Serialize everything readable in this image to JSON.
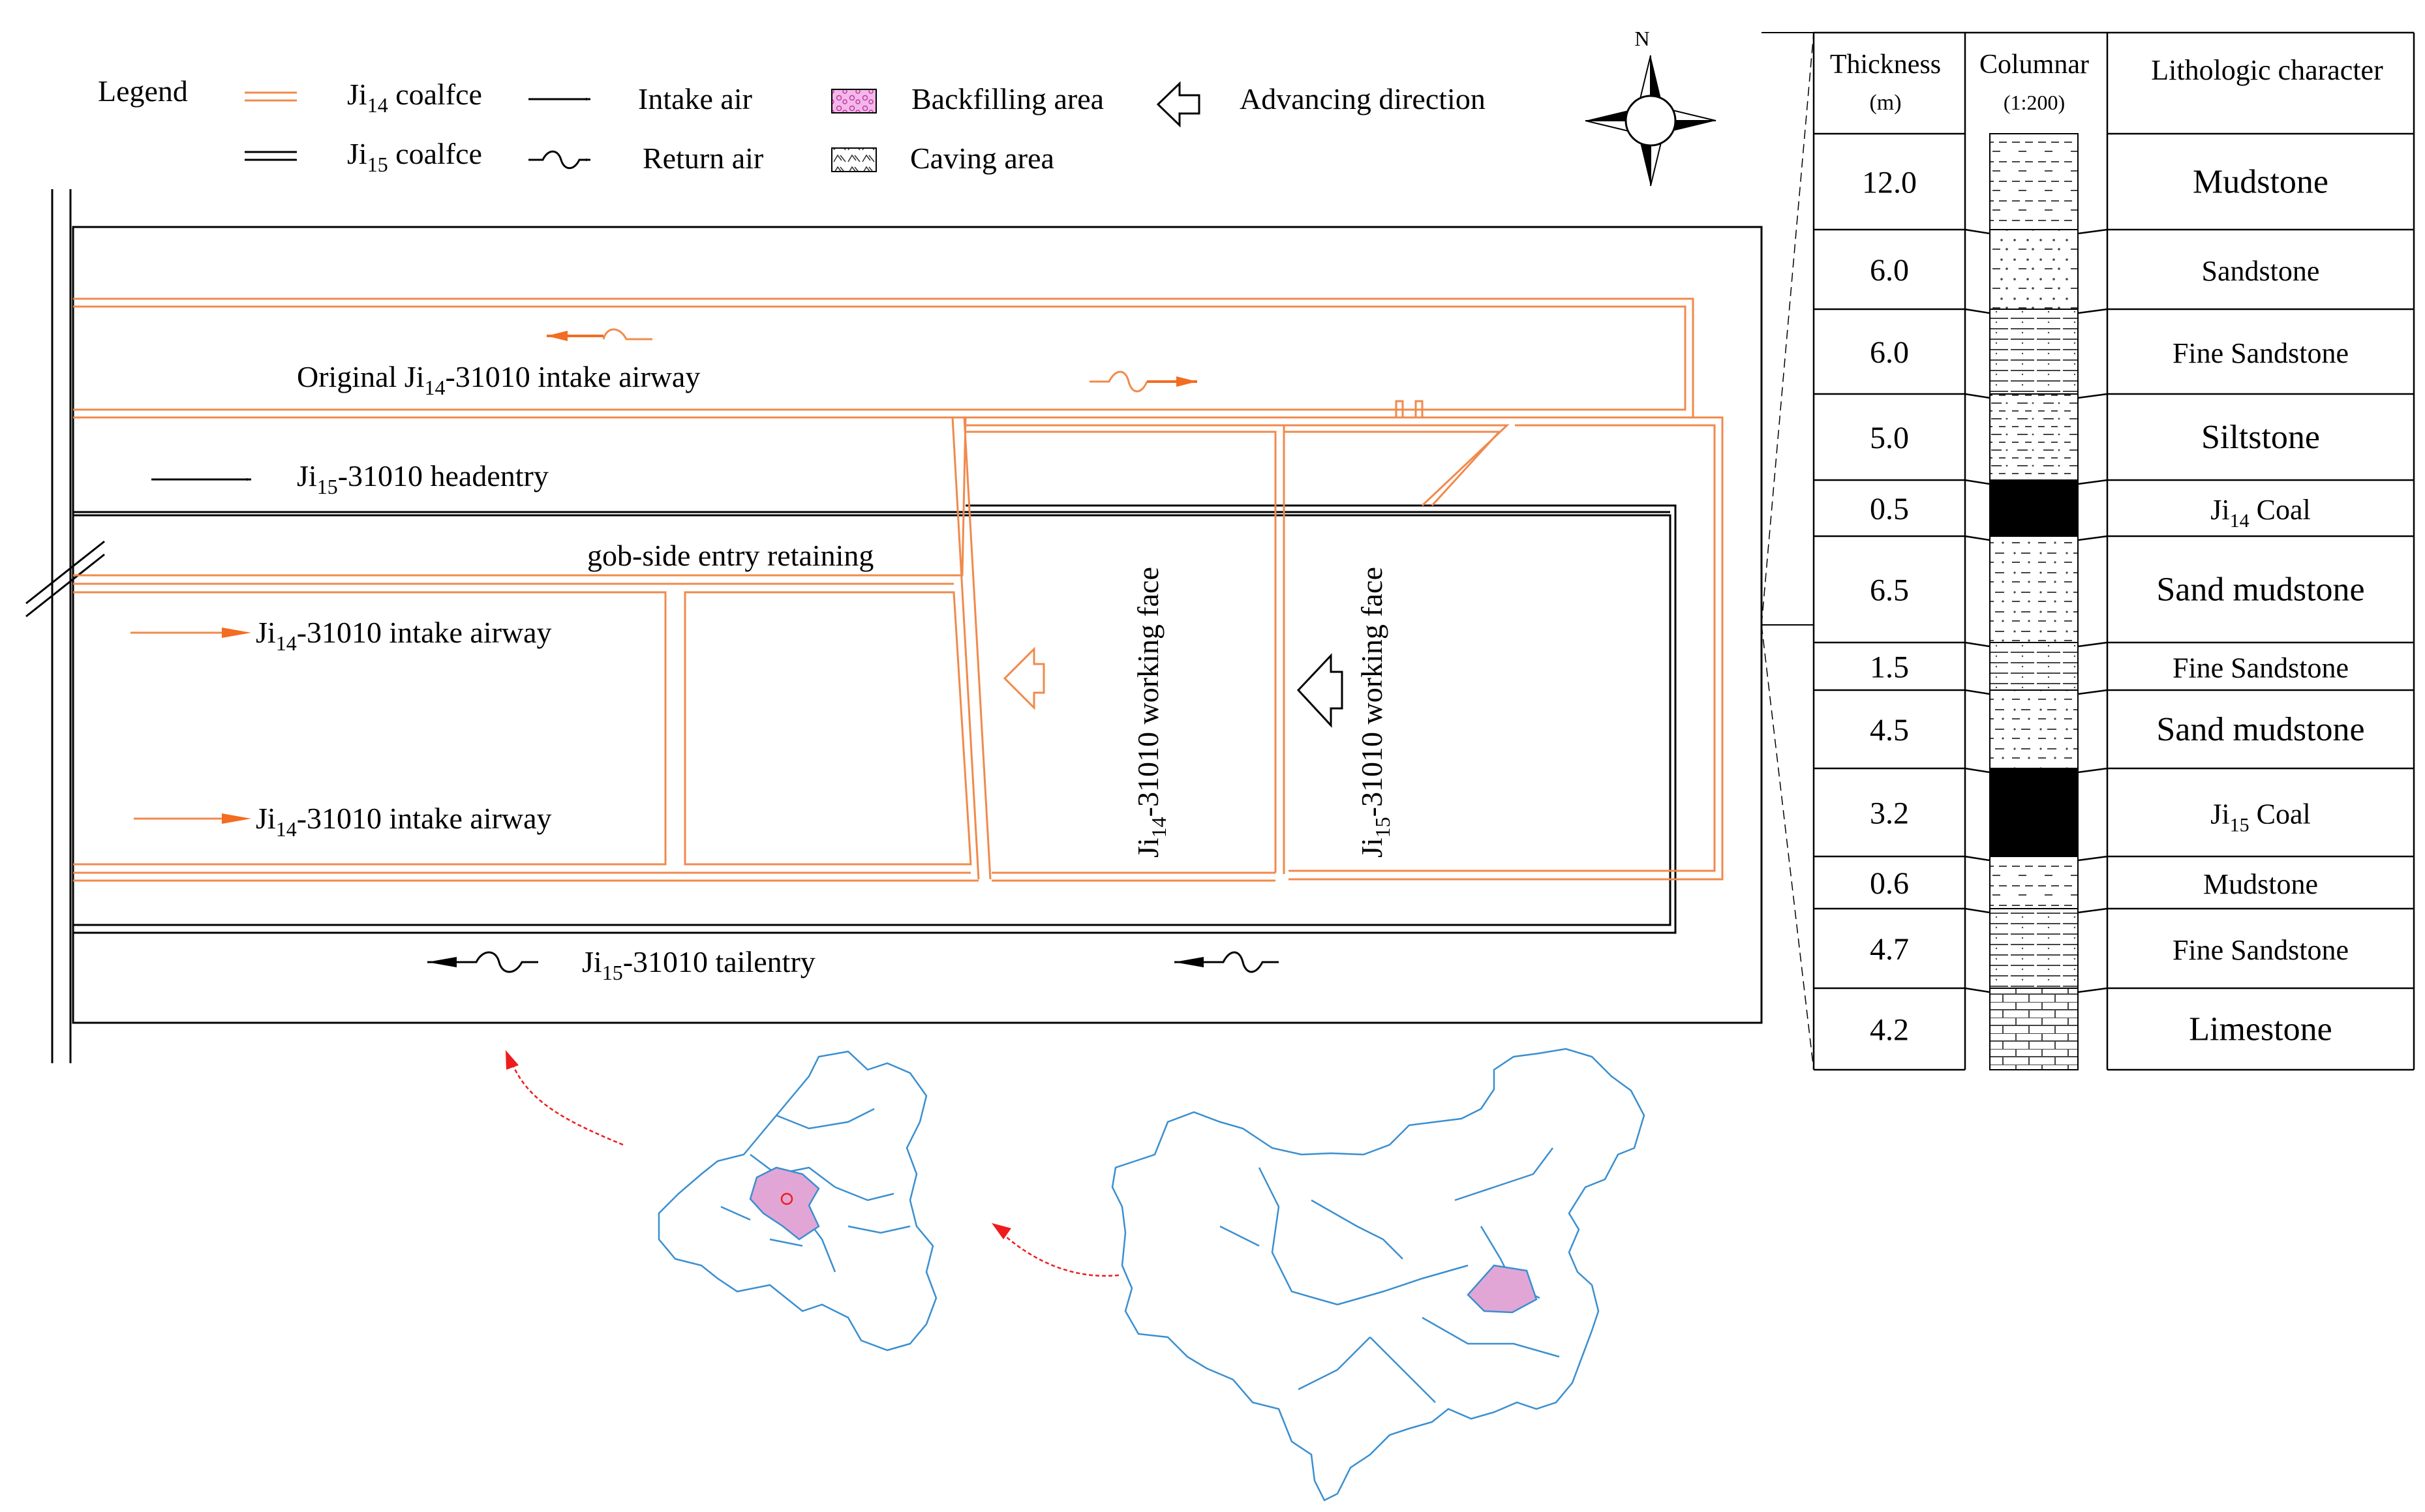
{
  "legend": {
    "title": "Legend",
    "ji14_main": "Ji",
    "ji14_sub": "14",
    "ji14_suffix": " coalfce",
    "ji15_main": "Ji",
    "ji15_sub": "15",
    "ji15_suffix": " coalfce",
    "intake_air": "Intake air",
    "return_air": "Return air",
    "backfilling": "Backfilling area",
    "caving": "Caving area",
    "advancing": "Advancing direction"
  },
  "compass": {
    "north": "N"
  },
  "map_labels": {
    "original_intake": {
      "pre": "Original Ji",
      "sub": "14",
      "post": "-31010 intake airway"
    },
    "headentry": {
      "pre": "Ji",
      "sub": "15",
      "post": "-31010 headentry"
    },
    "gob_side": "gob-side entry retaining",
    "intake_1": {
      "pre": "Ji",
      "sub": "14",
      "post": "-31010 intake airway"
    },
    "intake_2": {
      "pre": "Ji",
      "sub": "14",
      "post": "-31010 intake airway"
    },
    "tailentry": {
      "pre": "Ji",
      "sub": "15",
      "post": "-31010 tailentry"
    },
    "face14": {
      "pre": "Ji",
      "sub": "14",
      "post": "-31010 working face"
    },
    "face15": {
      "pre": "Ji",
      "sub": "15",
      "post": "-31010 working face"
    }
  },
  "column": {
    "h_thickness": "Thickness",
    "h_thickness_unit": "(m)",
    "h_columnar": "Columnar",
    "h_columnar_scale": "(1:200)",
    "h_lithology": "Lithologic character",
    "rows": [
      {
        "thickness": "12.0",
        "litho": "Mudstone",
        "pattern": "mud"
      },
      {
        "thickness": "6.0",
        "litho": "Sandstone",
        "pattern": "sand"
      },
      {
        "thickness": "6.0",
        "litho": "Fine Sandstone",
        "pattern": "fine"
      },
      {
        "thickness": "5.0",
        "litho": "Siltstone",
        "pattern": "silt"
      },
      {
        "thickness": "0.5",
        "litho_pre": "Ji",
        "litho_sub": "14",
        "litho_post": " Coal",
        "pattern": "coal"
      },
      {
        "thickness": "6.5",
        "litho": "Sand mudstone",
        "pattern": "sandmud"
      },
      {
        "thickness": "1.5",
        "litho": "Fine Sandstone",
        "pattern": "fine"
      },
      {
        "thickness": "4.5",
        "litho": "Sand mudstone",
        "pattern": "sandmud"
      },
      {
        "thickness": "3.2",
        "litho_pre": "Ji",
        "litho_sub": "15",
        "litho_post": " Coal",
        "pattern": "coal"
      },
      {
        "thickness": "0.6",
        "litho": "Mudstone",
        "pattern": "mud"
      },
      {
        "thickness": "4.7",
        "litho": "Fine Sandstone",
        "pattern": "fine"
      },
      {
        "thickness": "4.2",
        "litho": "Limestone",
        "pattern": "lime"
      }
    ]
  },
  "colors": {
    "ji14": "#f08a4b",
    "ji15": "#000000",
    "arrow_intake": "#f26c22",
    "map_border": "#3a8fd0",
    "highlight": "#e2a6d6",
    "red_arrow": "#ee1c1c"
  }
}
